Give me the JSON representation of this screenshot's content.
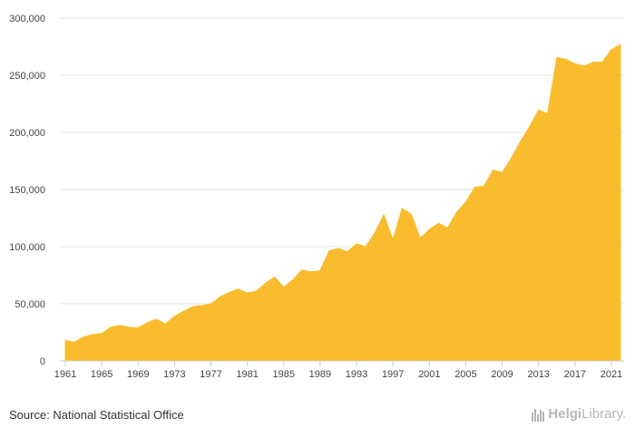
{
  "chart_data": {
    "type": "area",
    "title": "",
    "xlabel": "",
    "ylabel": "",
    "x": [
      1961,
      1962,
      1963,
      1964,
      1965,
      1966,
      1967,
      1968,
      1969,
      1970,
      1971,
      1972,
      1973,
      1974,
      1975,
      1976,
      1977,
      1978,
      1979,
      1980,
      1981,
      1982,
      1983,
      1984,
      1985,
      1986,
      1987,
      1988,
      1989,
      1990,
      1991,
      1992,
      1993,
      1994,
      1995,
      1996,
      1997,
      1998,
      1999,
      2000,
      2001,
      2002,
      2003,
      2004,
      2005,
      2006,
      2007,
      2008,
      2009,
      2010,
      2011,
      2012,
      2013,
      2014,
      2015,
      2016,
      2017,
      2018,
      2019,
      2020,
      2021,
      2022
    ],
    "series": [
      {
        "values": [
          18000,
          16500,
          21000,
          23000,
          24000,
          29500,
          31000,
          29500,
          29000,
          33500,
          36500,
          32500,
          39000,
          43500,
          47500,
          48500,
          50000,
          56000,
          60000,
          63000,
          59500,
          61000,
          68000,
          73500,
          64500,
          71000,
          79500,
          78000,
          79000,
          96500,
          98500,
          95500,
          102500,
          100000,
          112000,
          128000,
          106000,
          133500,
          128500,
          107500,
          115000,
          120500,
          116500,
          130000,
          139000,
          152000,
          153000,
          167000,
          165000,
          177500,
          192000,
          205000,
          219500,
          216500,
          265500,
          264000,
          260000,
          258000,
          261500,
          261500,
          272500,
          277000
        ]
      }
    ],
    "ylim": [
      0,
      300000
    ],
    "yticks": [
      "0",
      "50,000",
      "100,000",
      "150,000",
      "200,000",
      "250,000",
      "300,000"
    ],
    "xticks": [
      "1961",
      "1965",
      "1969",
      "1973",
      "1977",
      "1981",
      "1985",
      "1989",
      "1993",
      "1997",
      "2001",
      "2005",
      "2009",
      "2013",
      "2017",
      "2021"
    ],
    "grid": true,
    "legend": "none",
    "fill_color": "#f9bc2e",
    "grid_color": "#e6e6e6",
    "axis_color": "#cccccc"
  },
  "footer": {
    "source": "Source: National Statistical Office",
    "brand_strong": "Helgi",
    "brand_rest": "Library."
  }
}
